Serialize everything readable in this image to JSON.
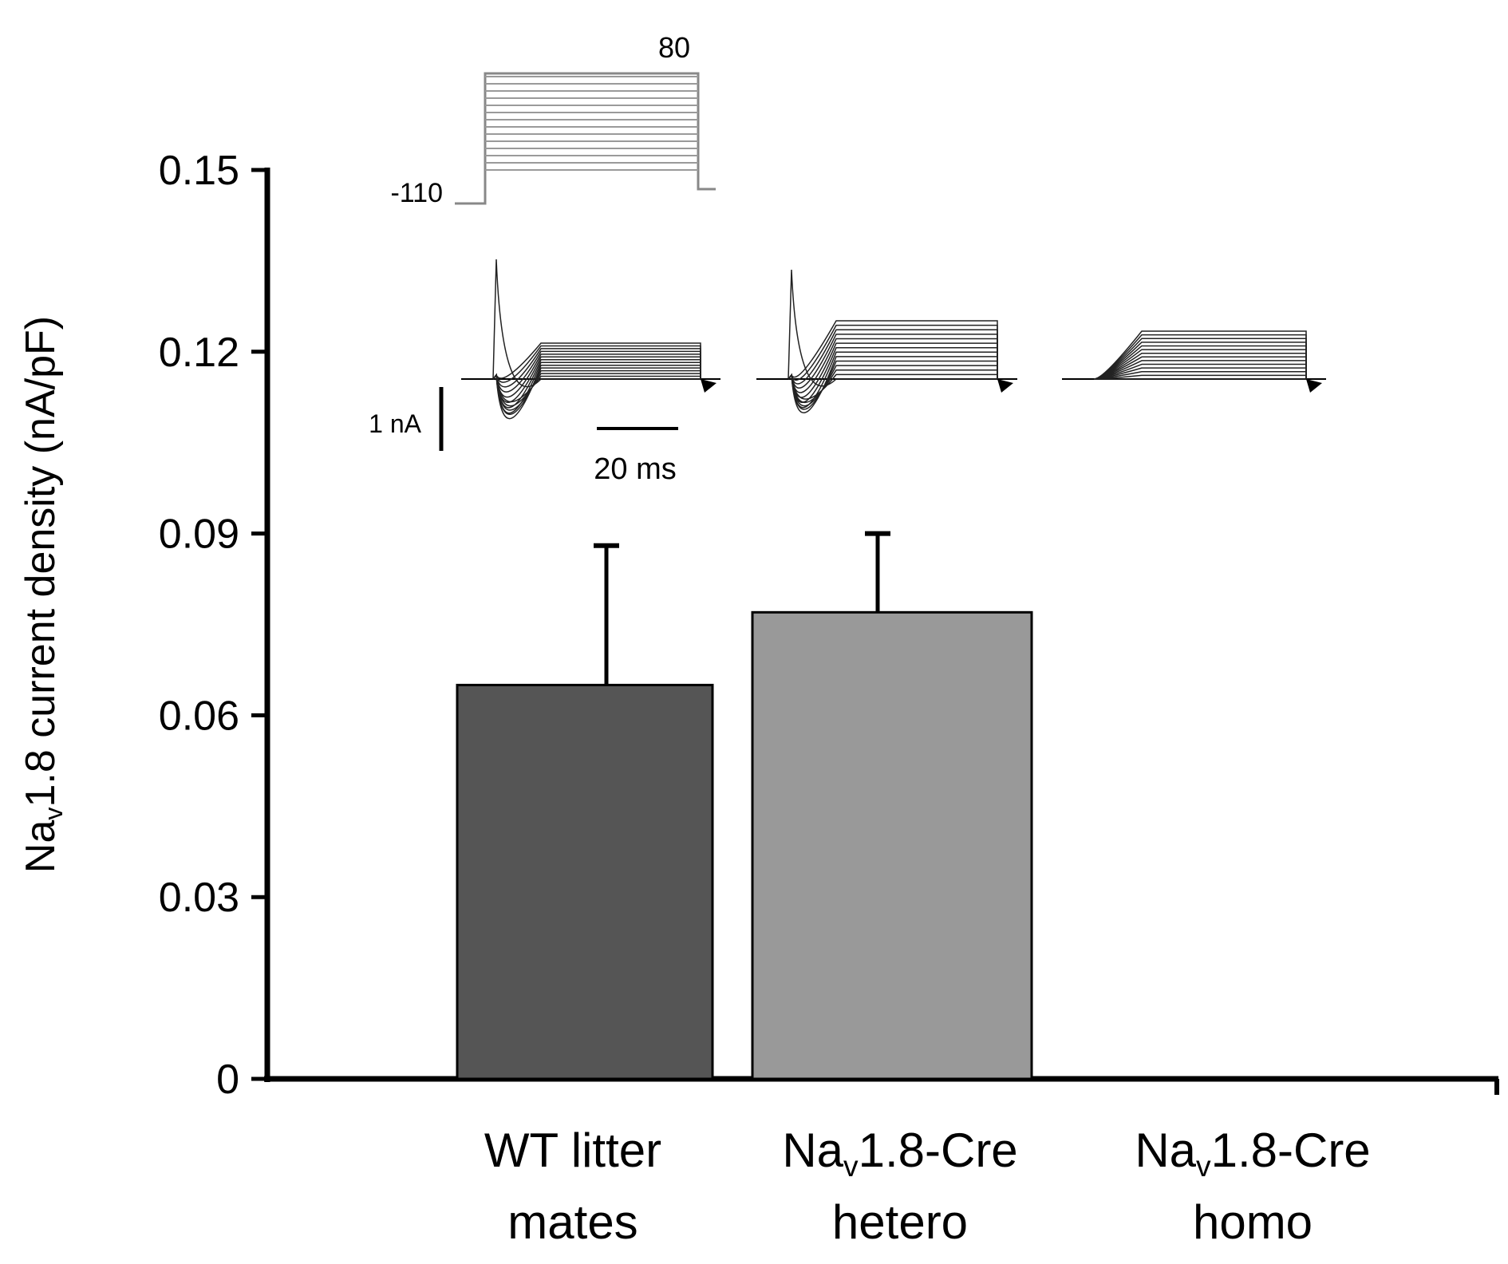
{
  "chart_data": {
    "type": "bar",
    "ylabel": "Nav1.8 current density (nA/pF)",
    "ylabel_parts": {
      "prefix": "Na",
      "sub": "v",
      "rest": "1.8 current density (nA/pF)"
    },
    "ylim": [
      0,
      0.15
    ],
    "yticks": [
      "0",
      "0.03",
      "0.06",
      "0.09",
      "0.12",
      "0.15"
    ],
    "ytick_values": [
      0,
      0.03,
      0.06,
      0.09,
      0.12,
      0.15
    ],
    "categories": [
      {
        "line1_prefix": "WT litter",
        "line1_sub": "",
        "line1_rest": "",
        "line2": "mates"
      },
      {
        "line1_prefix": "Na",
        "line1_sub": "v",
        "line1_rest": "1.8-Cre",
        "line2": "hetero"
      },
      {
        "line1_prefix": "Na",
        "line1_sub": "v",
        "line1_rest": "1.8-Cre",
        "line2": "homo"
      }
    ],
    "values": [
      0.065,
      0.077,
      0.0
    ],
    "errors": [
      0.023,
      0.013,
      0.0
    ],
    "colors": [
      "#555555",
      "#999999",
      "#cccccc"
    ],
    "grid": false,
    "inset": {
      "protocol_high": "80",
      "protocol_low": "-110",
      "scale_current": "1 nA",
      "scale_time": "20 ms"
    }
  }
}
